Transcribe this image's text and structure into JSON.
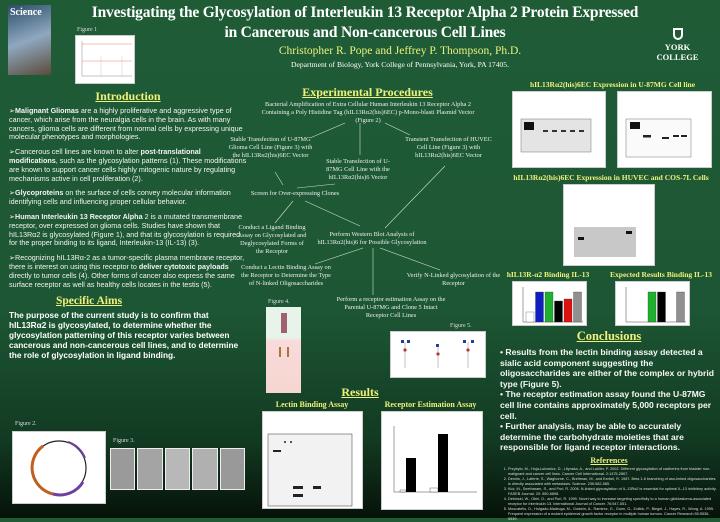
{
  "header": {
    "title_line1": "Investigating the Glycosylation of Interleukin 13 Receptor Alpha 2 Protein Expressed",
    "title_line2": "in Cancerous and Non-cancerous Cell Lines",
    "authors": "Christopher R. Pope and Jeffrey P. Thompson, Ph.D.",
    "department": "Department of Biology, York College of Pennsylvania, York, PA 17405.",
    "logo_text": "YORK COLLEGE",
    "cover_text": "Science",
    "figure1_label": "Figure 1"
  },
  "introduction": {
    "heading": "Introduction",
    "paragraphs": [
      {
        "bold": "Malignant Gliomas",
        "text": " are a highly proliferative and aggressive type of cancer, which arise from the neuralgia cells in the brain. As with many cancers, glioma cells are different from normal cells by expressing unique molecular phenotypes and morphologies."
      },
      {
        "pre": "Cancerous cell lines are known to alter ",
        "bold": "post-translational modifications",
        "text": ", such as the glycosylation patterns (1).  These modifications are known to support cancer cells highly mitogenic nature by regulating mechanisms active in cell proliferation (2)."
      },
      {
        "bold": "Glycoproteins",
        "text": " on the surface of cells convey molecular information identifying cells and influencing proper cellular behavior."
      },
      {
        "bold": "Human Interleukin 13 Receptor Alpha",
        "text": " 2 is a mutated transmembrane receptor, over expressed on glioma cells. Studies have shown that hIL13Rα2 is glycosylated (Figure 1), and that its glycosylation is required for the proper binding to its ligand, Interleukin-13 (IL-13) (3)."
      },
      {
        "pre": "Recognizing hIL13Rα-2 as a tumor-specific plasma membrane receptor, there is interest on using this receptor to ",
        "bold": "deliver cytotoxic payloads",
        "text": " directly to tumor cells (4). Other forms of cancer also express the same surface receptor as well as healthy cells locates in the testis (5)."
      }
    ]
  },
  "specific_aims": {
    "heading": "Specific Aims",
    "text": "The purpose of the current study is to confirm that hIL13Rα2 is glycosylated, to determine whether the glycosylation patterning of this receptor varies between cancerous and non-cancerous cell lines, and to determine the role of glycosylation in ligand binding.",
    "figure2_label": "Figure 2.",
    "figure3_label": "Figure 3."
  },
  "procedures": {
    "heading": "Experimental Procedures",
    "steps": [
      "Bacterial Amplification of Extra Cellular Human Interleukin 13 Receptor Alpha 2 Containing a Poly Histidine Tag (hIL13Rα2(his)6EC)  p-Mono-blasti Plasmid Vector (Figure 2)",
      "Stable Transfection of U-87MG Glioma Cell Line (Figure 3) with the hIL13Rα2(his)6EC Vector",
      "Stable Transfection of U-87MG Cell Line with the hIL13Rα2(his)6 Vector",
      "Transient Transfection of HUVEC Cell Line (Figure 3) with hIL13Rα2(his)6EC Vector",
      "Screen for Over-expressing Clones",
      "Conduct a Ligand Binding Assay on Glycosylated and Deglycosylated Forms of the Receptor",
      "Perform Western Blot Analysis of hIL13Rα2(his)6 for Possible Glycosylation",
      "Conduct a Lectin Binding Assay on the Receptor to Determine the Type of N-linked Oligosaccharides",
      "Verify N-Linked glycosylation of the Receptor",
      "Perform a receptor estimation Assay on the Parental U-87MG and Clone 5 Intact Receptor Cell Lines"
    ],
    "figure4_label": "Figure 4.",
    "figure5_label": "Figure 5."
  },
  "results": {
    "heading": "Results",
    "lectin": "Lectin Binding Assay",
    "receptor": "Receptor Estimation Assay"
  },
  "right": {
    "u87_heading": "hIL13Rα2(his)6EC Expression in U-87MG Cell line",
    "huvec_heading": "hIL13Rα2(his)6EC Expression in HUVEC and COS-7L Cells",
    "binding_heading": "hIL13R-α2 Binding IL-13",
    "expected_heading": "Expected Results Binding IL-13",
    "bar_colors": [
      "#ffffff",
      "#1020c0",
      "#20b030",
      "#000000",
      "#e01010",
      "#909090"
    ]
  },
  "conclusions": {
    "heading": "Conclusions",
    "items": [
      "Results from the lectin binding assay detected a sialic acid component suggesting the oligosaccharides are either of the complex or hybrid type (Figure 5).",
      "The receptor estimation assay found the U-87MG cell line contains approximately 5,000 receptors per cell.",
      "Further analysis, may be able to accurately determine the carbohydrate moieties that are responsible for ligand receptor interactions."
    ]
  },
  "references": {
    "heading": "References",
    "items": [
      "Przybylo, M., Hoja-Lukowicz, D., Litynska, A., and Laidler, P. 2002. Different glycosylation of cadherins from bladder non-malignant and cancer cell lines. Cancer Cell International. 2:1475-2867.",
      "Dennis, J., Laferte, S., Waghorne, C., Breitman, M., and Kerbel, R. 1987. Beta 1-6 branching of asn-linked oligosaccharides is directly associated with metastasis. Science. 236:582-585.",
      "Kioi, M., Seetharam, S., and Puri, R. 2006. N-linked glycosylation of IL-13Rα2 is essential for optimal IL-13 inhibitory activity. FASEB Journal. 20: 890-6898.",
      "Debinski, W., Obiri, D., and Puri, R. 1999. Novel way to increase targeting specificity to a human glioblastoma-associated receptor for interleukin 13. International Journal of Cancer. 76:547-551.",
      "Moscatello, D., Holgado-Madruga, M., Godwin, A., Ramirez, G., Gunn, G., Zoltick, P., Biegel, J., Hayes, R., Wong, A. 1995. Frequent expression of a mutant epidermal growth factor receptor in multiple human tumors. Cancer Research 55:5536-5539."
    ]
  }
}
